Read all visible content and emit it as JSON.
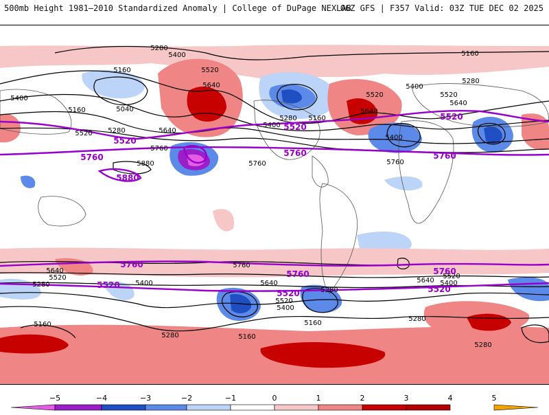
{
  "header": {
    "left": "500mb Height 1981–2010 Standardized Anomaly | College of DuPage NEXLAB",
    "right": "06Z GFS | F357 Valid: 03Z TUE DEC 02 2025"
  },
  "colors": {
    "ocean": "#ffffff",
    "neg5": "#e55ce5",
    "neg4": "#9b1fc9",
    "neg3": "#1f4fc2",
    "neg2": "#5b8ae8",
    "neg1": "#bcd4f7",
    "pos1": "#f7c6c6",
    "pos2": "#f08585",
    "pos3": "#c70000",
    "pos4": "#b30000",
    "pos5": "#f5a300",
    "highlight_contour": "#9900cc",
    "contour": "#000000"
  },
  "colorbar": {
    "ticks": [
      "−5",
      "−4",
      "−3",
      "−2",
      "−1",
      "0",
      "1",
      "2",
      "3",
      "4",
      "5"
    ]
  },
  "contour_labels": {
    "black": [
      "5280",
      "5400",
      "5160",
      "5160",
      "5040",
      "5400",
      "5520",
      "5280",
      "5640",
      "5520",
      "5640",
      "5760",
      "5880",
      "5760",
      "5160",
      "5280",
      "5400",
      "5520",
      "5640",
      "5400",
      "5760",
      "5280",
      "5160",
      "5400",
      "5520",
      "5640",
      "5640",
      "5520",
      "5400",
      "5280",
      "5760",
      "5640",
      "5520",
      "5400",
      "5280",
      "5160",
      "5160",
      "5280",
      "5640",
      "5520",
      "5400",
      "5280",
      "5280",
      "5160"
    ],
    "purple": [
      "5520",
      "5760",
      "5880",
      "5520",
      "5760",
      "5520",
      "5760",
      "5760",
      "5760",
      "5520",
      "5520",
      "5520"
    ]
  }
}
